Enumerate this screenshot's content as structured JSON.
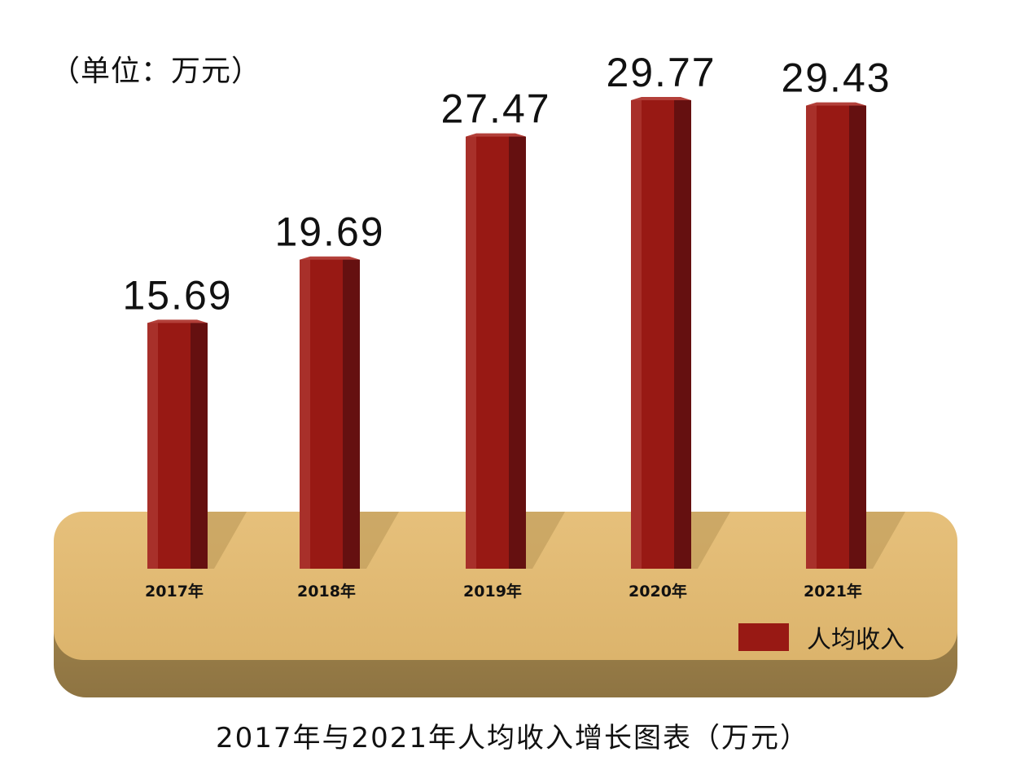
{
  "unit_label": "（单位：万元）",
  "title": "2017年与2021年人均收入增长图表（万元）",
  "legend": {
    "label": "人均收入"
  },
  "colors": {
    "bar_front": "#981914",
    "bar_left": "#a8302a",
    "bar_right": "#651010",
    "bar_top": "#b3403a",
    "platform_top": "#e2bb74",
    "platform_side": "#9c8049"
  },
  "chart_data": {
    "type": "bar",
    "categories": [
      "2017年",
      "2018年",
      "2019年",
      "2020年",
      "2021年"
    ],
    "series": [
      {
        "name": "人均收入",
        "values": [
          15.69,
          19.69,
          27.47,
          29.77,
          29.43
        ]
      }
    ],
    "value_labels": [
      "15.69",
      "19.69",
      "27.47",
      "29.77",
      "29.43"
    ],
    "ylim": [
      0,
      29.77
    ],
    "grid": false,
    "legend_position": "bottom-right"
  }
}
